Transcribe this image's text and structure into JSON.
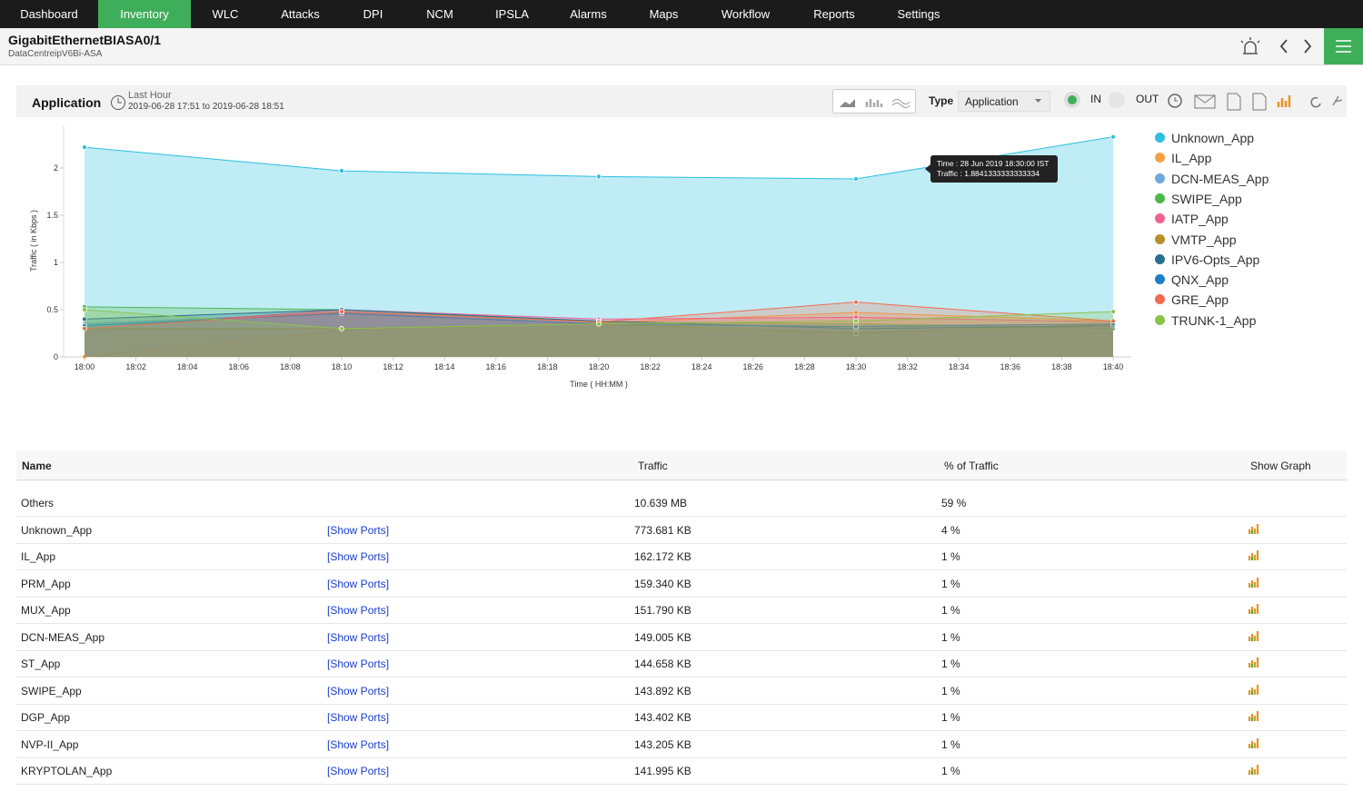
{
  "nav": {
    "items": [
      "Dashboard",
      "Inventory",
      "WLC",
      "Attacks",
      "DPI",
      "NCM",
      "IPSLA",
      "Alarms",
      "Maps",
      "Workflow",
      "Reports",
      "Settings"
    ]
  },
  "header": {
    "title": "GigabitEthernetBIASA0/1",
    "subtitle": "DataCentreipV6Bi-ASA"
  },
  "panel": {
    "title": "Application",
    "period": "Last Hour",
    "range": "2019-06-28 17:51 to 2019-06-28 18:51",
    "type_label": "Type",
    "type_value": "Application",
    "in_label": "IN",
    "out_label": "OUT"
  },
  "chart_data": {
    "type": "area",
    "y_label": "Traffic ( in Kbps )",
    "x_label": "Time ( HH:MM )",
    "x": [
      "18:00",
      "18:10",
      "18:20",
      "18:30",
      "18:40"
    ],
    "xticks": [
      "18:00",
      "18:02",
      "18:04",
      "18:06",
      "18:08",
      "18:10",
      "18:12",
      "18:14",
      "18:16",
      "18:18",
      "18:20",
      "18:22",
      "18:24",
      "18:26",
      "18:28",
      "18:30",
      "18:32",
      "18:34",
      "18:36",
      "18:38",
      "18:40"
    ],
    "ylim": [
      0,
      2.5
    ],
    "yticks": [
      0,
      0.5,
      1,
      1.5,
      2
    ],
    "legend": "right",
    "series": [
      {
        "name": "Unknown_App",
        "color": "#2bbfdf",
        "values": [
          2.22,
          1.97,
          1.91,
          1.8841333333333334,
          2.33
        ]
      },
      {
        "name": "IL_App",
        "color": "#f5a142",
        "values": [
          0,
          0.28,
          0.36,
          0.47,
          0.38
        ]
      },
      {
        "name": "DCN-MEAS_App",
        "color": "#6fa8dc",
        "values": [
          0.35,
          0.47,
          0.35,
          0.33,
          0.35
        ]
      },
      {
        "name": "SWIPE_App",
        "color": "#4cb84c",
        "values": [
          0.53,
          0.5,
          0.37,
          0.35,
          0.3
        ]
      },
      {
        "name": "IATP_App",
        "color": "#f06292",
        "values": [
          0.3,
          0.5,
          0.4,
          0.42,
          0.37
        ]
      },
      {
        "name": "VMTP_App",
        "color": "#b8902a",
        "values": [
          0.3,
          0.3,
          0.35,
          0.25,
          0.35
        ]
      },
      {
        "name": "IPV6-Opts_App",
        "color": "#2a6f8f",
        "values": [
          0.4,
          0.5,
          0.38,
          0.3,
          0.33
        ]
      },
      {
        "name": "QNX_App",
        "color": "#1f7fc4",
        "values": [
          0.33,
          0.46,
          0.35,
          0.32,
          0.35
        ]
      },
      {
        "name": "GRE_App",
        "color": "#f26b4f",
        "values": [
          0.3,
          0.48,
          0.37,
          0.58,
          0.38
        ]
      },
      {
        "name": "TRUNK-1_App",
        "color": "#8bc34a",
        "values": [
          0.5,
          0.3,
          0.35,
          0.38,
          0.48
        ]
      }
    ],
    "annotations": [
      "Time : 28 Jun 2019 18:30:00 IST",
      "Traffic : 1.8841333333333334"
    ]
  },
  "table": {
    "headers": [
      "Name",
      "Traffic",
      "% of Traffic",
      "Show Graph"
    ],
    "rows": [
      [
        "Others",
        "10.639 MB",
        "59 %"
      ],
      [
        "Unknown_App",
        "[Show Ports]",
        "773.681 KB",
        "4 %"
      ],
      [
        "IL_App",
        "[Show Ports]",
        "162.172 KB",
        "1 %"
      ],
      [
        "PRM_App",
        "[Show Ports]",
        "159.340 KB",
        "1 %"
      ],
      [
        "MUX_App",
        "[Show Ports]",
        "151.790 KB",
        "1 %"
      ],
      [
        "DCN-MEAS_App",
        "[Show Ports]",
        "149.005 KB",
        "1 %"
      ],
      [
        "ST_App",
        "[Show Ports]",
        "144.658 KB",
        "1 %"
      ],
      [
        "SWIPE_App",
        "[Show Ports]",
        "143.892 KB",
        "1 %"
      ],
      [
        "DGP_App",
        "[Show Ports]",
        "143.402 KB",
        "1 %"
      ],
      [
        "NVP-II_App",
        "[Show Ports]",
        "143.205 KB",
        "1 %"
      ],
      [
        "KRYPTOLAN_App",
        "[Show Ports]",
        "141.995 KB",
        "1 %"
      ]
    ]
  }
}
